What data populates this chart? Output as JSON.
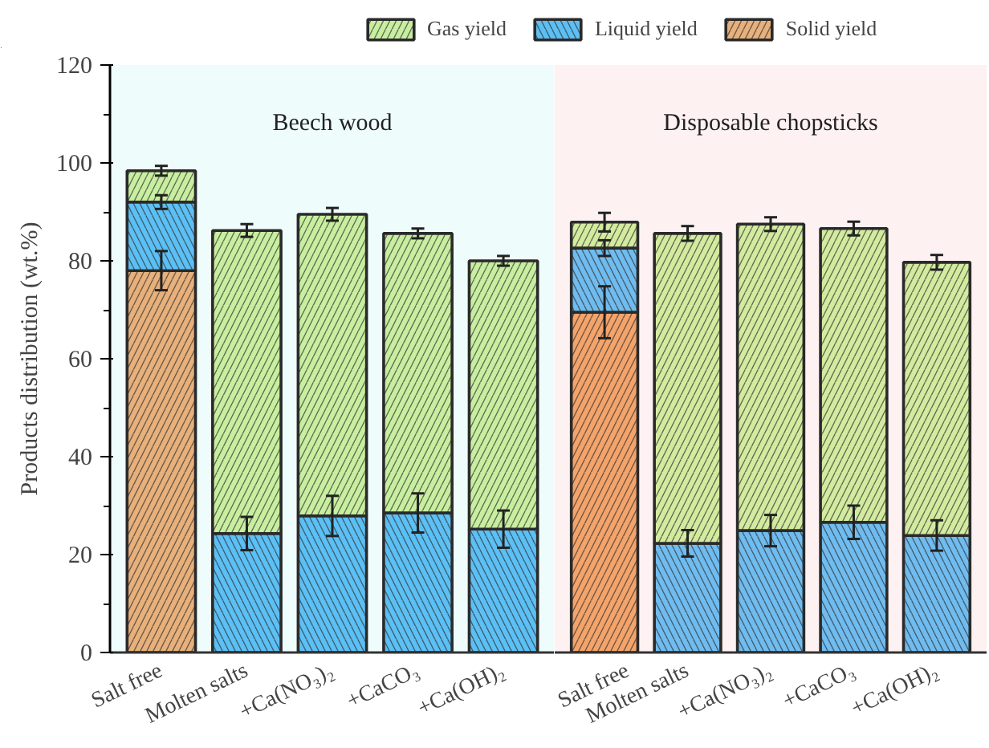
{
  "chart_data": [
    {
      "type": "bar",
      "stacked": true,
      "ylabel": "Products distribution (wt.%)",
      "categories": [
        "Salt free",
        "Molten salts",
        "+Ca(NO₃)₂",
        "+CaCO₃",
        "+Ca(OH)₂"
      ],
      "ylim": [
        0,
        120
      ],
      "yticks": [
        0,
        20,
        40,
        60,
        80,
        100,
        120
      ],
      "legend": "top",
      "bands": [
        {
          "axis": "y",
          "from": 0,
          "to": 120,
          "label": "Beech wood",
          "color": "#effcfc"
        }
      ],
      "series": [
        {
          "name": "Solid yield",
          "color": "#e8b07a",
          "values": [
            78,
            0,
            0,
            0,
            0
          ],
          "errors": [
            4,
            null,
            null,
            null,
            null
          ]
        },
        {
          "name": "Liquid yield",
          "color": "#5bc0f5",
          "values": [
            14,
            24.3,
            27.9,
            28.5,
            25.2
          ],
          "errors": [
            1.4,
            3.4,
            4.1,
            4,
            3.8
          ]
        },
        {
          "name": "Gas yield",
          "color": "#c8ef9f",
          "values": [
            6.4,
            61.9,
            61.6,
            57.1,
            54.8
          ],
          "errors": [
            1,
            1.3,
            1.3,
            1,
            1
          ]
        }
      ]
    },
    {
      "type": "bar",
      "stacked": true,
      "categories": [
        "Salt free",
        "Molten salts",
        "+Ca(NO₃)₂",
        "+CaCO₃",
        "+Ca(OH)₂"
      ],
      "ylim": [
        0,
        120
      ],
      "yticks": [
        0,
        20,
        40,
        60,
        80,
        100,
        120
      ],
      "tick_labels": "x",
      "bands": [
        {
          "axis": "y",
          "from": 0,
          "to": 120,
          "label": "Disposable chopsticks",
          "color": "#fdf1f1"
        }
      ],
      "series": [
        {
          "color": "#f4a46a",
          "values": [
            69.5,
            0,
            0,
            0,
            0
          ],
          "errors": [
            5.3,
            null,
            null,
            null,
            null
          ]
        },
        {
          "color": "#6fbcf0",
          "values": [
            13.1,
            22.3,
            24.9,
            26.6,
            23.9
          ],
          "errors": [
            1.6,
            2.7,
            3.2,
            3.4,
            3.1
          ]
        },
        {
          "color": "#d3eb9e",
          "values": [
            5.3,
            63.3,
            62.6,
            60,
            55.8
          ],
          "errors": [
            1.9,
            1.5,
            1.4,
            1.4,
            1.5
          ]
        }
      ]
    }
  ]
}
